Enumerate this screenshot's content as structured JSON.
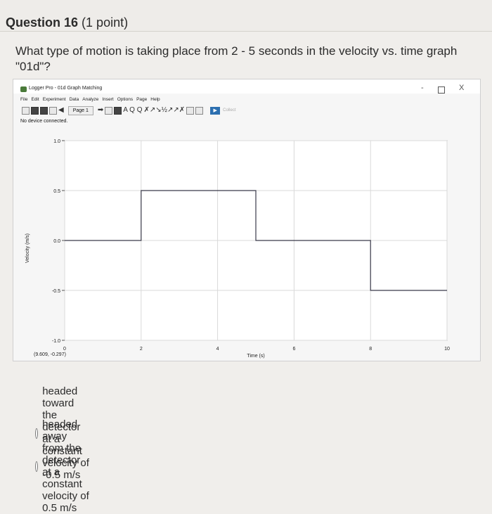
{
  "question": {
    "title": "Question 16",
    "points": "(1 point)",
    "text": "What type of motion is taking place from 2 - 5 seconds in the velocity vs. time graph \"01d\"?"
  },
  "logger_pro": {
    "window_title": "Logger Pro - 01d Graph Matching",
    "window_controls": {
      "minimize": "-",
      "close": "X"
    },
    "menu": [
      "File",
      "Edit",
      "Experiment",
      "Data",
      "Analyze",
      "Insert",
      "Options",
      "Page",
      "Help"
    ],
    "toolbar": {
      "page_label": "Page 1",
      "glyphs": "A Q Q",
      "collect_label": "Collect"
    },
    "status": "No device connected.",
    "cursor_readout": "(9.609, -0.297)"
  },
  "chart_data": {
    "type": "line",
    "xlabel": "Time (s)",
    "ylabel": "Velocity (m/s)",
    "xlim": [
      0,
      10
    ],
    "ylim": [
      -1.0,
      1.0
    ],
    "x_ticks": [
      "0",
      "2",
      "4",
      "6",
      "8",
      "10"
    ],
    "y_ticks": [
      "1.0",
      "0.5",
      "0.0",
      "-0.5",
      "-1.0"
    ],
    "grid": true,
    "series": [
      {
        "points": [
          [
            0,
            0
          ],
          [
            2,
            0
          ],
          [
            2,
            0.5
          ],
          [
            5,
            0.5
          ],
          [
            5,
            0
          ],
          [
            8,
            0
          ],
          [
            8,
            -0.5
          ],
          [
            10,
            -0.5
          ]
        ]
      }
    ]
  },
  "answers": [
    {
      "text": "headed toward the detector at a constant velocity of -0.5 m/s"
    },
    {
      "text": "headed away from the detector at a constant velocity of 0.5 m/s"
    }
  ]
}
